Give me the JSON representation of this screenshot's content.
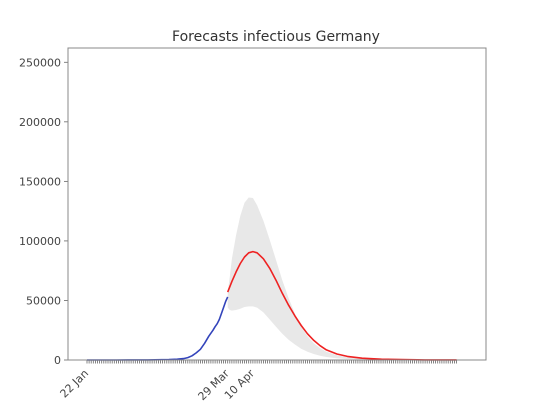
{
  "chart_data": {
    "type": "line",
    "title": "Forecasts infectious Germany",
    "xlabel": "",
    "ylabel": "",
    "x_axis": {
      "start_date": "2020-01-22",
      "end_date": "2020-07-16",
      "tick_labels": [
        {
          "date": "2020-01-22",
          "label": "22 Jan"
        },
        {
          "date": "2020-03-29",
          "label": "29 Mar"
        },
        {
          "date": "2020-04-10",
          "label": "10 Apr"
        }
      ],
      "label_rotation_deg": -45,
      "minor_ticks": "daily"
    },
    "y_axis": {
      "ylim": [
        0,
        262000
      ],
      "ticks": [
        0,
        50000,
        100000,
        150000,
        200000,
        250000
      ],
      "tick_labels": [
        "0",
        "50000",
        "100000",
        "150000",
        "200000",
        "250000"
      ]
    },
    "grid": false,
    "legend": "none",
    "series": [
      {
        "kind": "line",
        "color": "#3344bb",
        "points": [
          [
            "2020-01-22",
            0
          ],
          [
            "2020-02-05",
            20
          ],
          [
            "2020-02-20",
            120
          ],
          [
            "2020-03-01",
            300
          ],
          [
            "2020-03-05",
            700
          ],
          [
            "2020-03-08",
            1200
          ],
          [
            "2020-03-10",
            2000
          ],
          [
            "2020-03-12",
            3500
          ],
          [
            "2020-03-14",
            6000
          ],
          [
            "2020-03-16",
            9000
          ],
          [
            "2020-03-18",
            14000
          ],
          [
            "2020-03-20",
            20000
          ],
          [
            "2020-03-22",
            25000
          ],
          [
            "2020-03-23",
            28000
          ],
          [
            "2020-03-24",
            30500
          ],
          [
            "2020-03-25",
            34000
          ],
          [
            "2020-03-26",
            39000
          ],
          [
            "2020-03-27",
            44000
          ],
          [
            "2020-03-28",
            49000
          ],
          [
            "2020-03-29",
            53000
          ]
        ]
      },
      {
        "kind": "line",
        "color": "#ee2222",
        "points": [
          [
            "2020-03-29",
            57000
          ],
          [
            "2020-03-31",
            66000
          ],
          [
            "2020-04-02",
            74000
          ],
          [
            "2020-04-04",
            81000
          ],
          [
            "2020-04-06",
            86500
          ],
          [
            "2020-04-08",
            90000
          ],
          [
            "2020-04-10",
            91000
          ],
          [
            "2020-04-12",
            90000
          ],
          [
            "2020-04-15",
            85000
          ],
          [
            "2020-04-18",
            77000
          ],
          [
            "2020-04-21",
            67000
          ],
          [
            "2020-04-24",
            56000
          ],
          [
            "2020-04-27",
            46000
          ],
          [
            "2020-04-30",
            37000
          ],
          [
            "2020-05-03",
            29000
          ],
          [
            "2020-05-06",
            22000
          ],
          [
            "2020-05-09",
            16500
          ],
          [
            "2020-05-12",
            12000
          ],
          [
            "2020-05-15",
            8500
          ],
          [
            "2020-05-20",
            5000
          ],
          [
            "2020-05-25",
            3000
          ],
          [
            "2020-06-01",
            1500
          ],
          [
            "2020-06-10",
            700
          ],
          [
            "2020-06-20",
            300
          ],
          [
            "2020-07-01",
            120
          ],
          [
            "2020-07-16",
            50
          ]
        ]
      },
      {
        "kind": "band",
        "color": "#e8e8e8",
        "points": [
          [
            "2020-03-29",
            44000,
            57000
          ],
          [
            "2020-03-30",
            42000,
            70000
          ],
          [
            "2020-03-31",
            41500,
            85000
          ],
          [
            "2020-04-02",
            42000,
            105000
          ],
          [
            "2020-04-04",
            43000,
            121000
          ],
          [
            "2020-04-06",
            44500,
            132000
          ],
          [
            "2020-04-08",
            45000,
            136500
          ],
          [
            "2020-04-10",
            45000,
            136000
          ],
          [
            "2020-04-12",
            44000,
            130000
          ],
          [
            "2020-04-15",
            40000,
            117000
          ],
          [
            "2020-04-18",
            34000,
            101000
          ],
          [
            "2020-04-21",
            28000,
            84000
          ],
          [
            "2020-04-24",
            22000,
            67000
          ],
          [
            "2020-04-27",
            17000,
            52000
          ],
          [
            "2020-04-30",
            13000,
            39000
          ],
          [
            "2020-05-03",
            9500,
            28000
          ],
          [
            "2020-05-06",
            7000,
            20000
          ],
          [
            "2020-05-09",
            5000,
            14000
          ],
          [
            "2020-05-12",
            3500,
            10000
          ],
          [
            "2020-05-15",
            2500,
            7000
          ],
          [
            "2020-05-20",
            1500,
            4000
          ],
          [
            "2020-05-25",
            800,
            2300
          ],
          [
            "2020-06-01",
            400,
            1200
          ],
          [
            "2020-06-10",
            200,
            600
          ],
          [
            "2020-06-20",
            80,
            260
          ],
          [
            "2020-07-01",
            30,
            100
          ],
          [
            "2020-07-16",
            10,
            40
          ]
        ]
      }
    ]
  }
}
